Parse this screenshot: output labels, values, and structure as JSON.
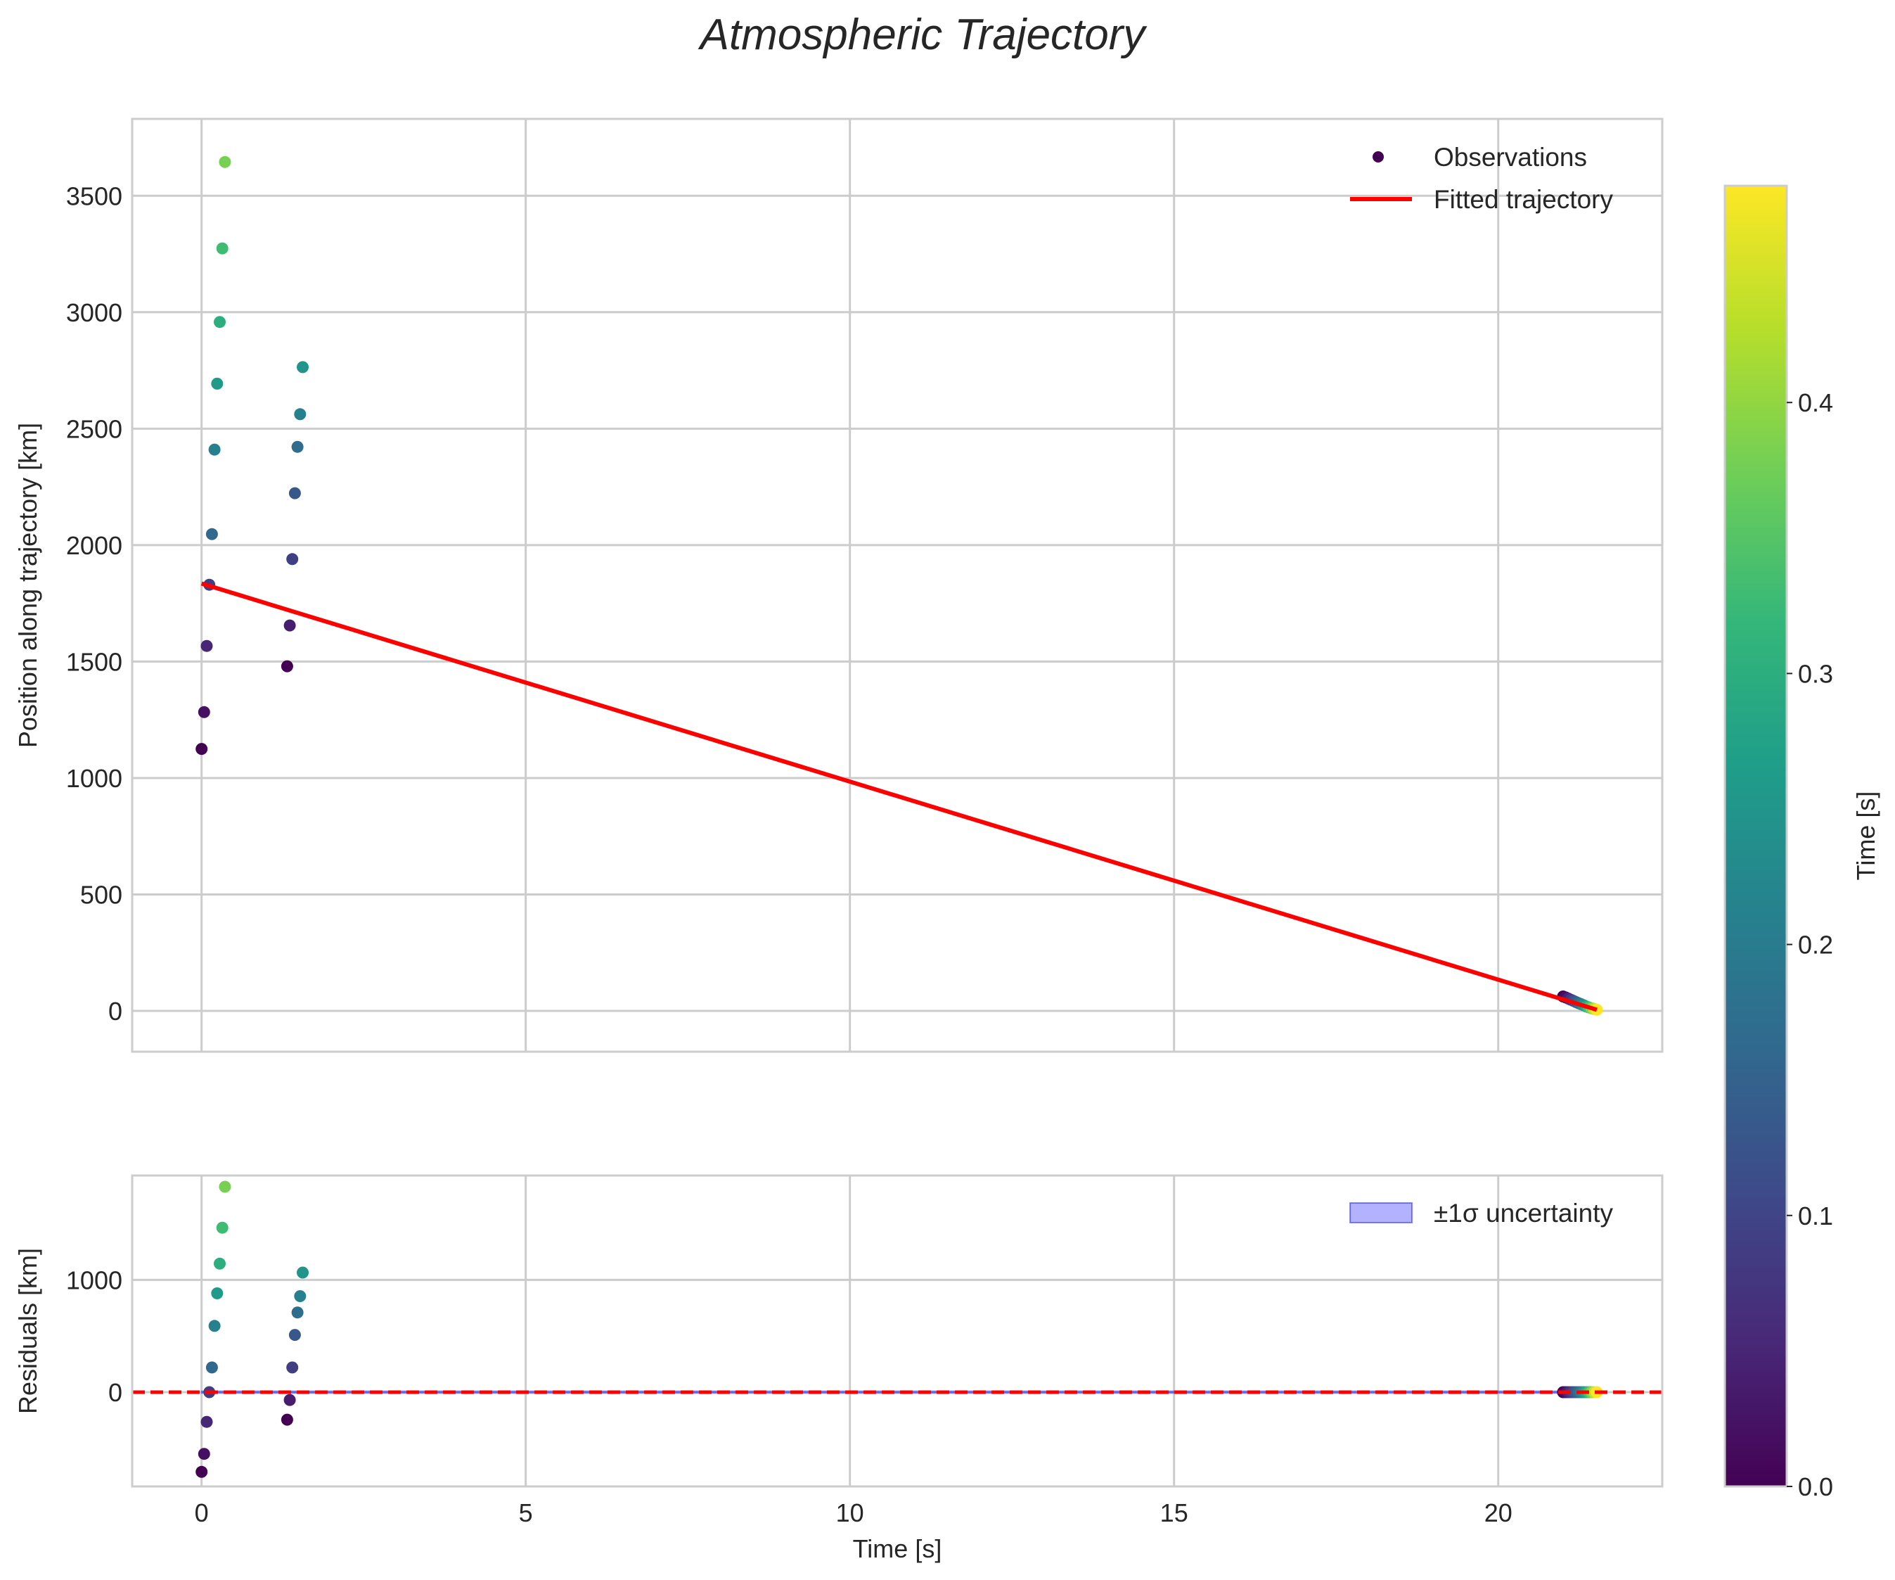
{
  "chart_data": {
    "title": "Atmospheric Trajectory",
    "colorbar": {
      "label": "Time [s]",
      "range": [
        0.0,
        0.48
      ],
      "ticks": [
        0.0,
        0.1,
        0.2,
        0.3,
        0.4
      ],
      "tick_labels": [
        "0.0",
        "0.1",
        "0.2",
        "0.3",
        "0.4"
      ],
      "colormap": [
        "#440154",
        "#482878",
        "#3e4989",
        "#31688e",
        "#26828e",
        "#1f9e89",
        "#35b779",
        "#6ece58",
        "#b5de2b",
        "#fde725"
      ]
    },
    "panels": [
      {
        "type": "scatter",
        "name": "trajectory",
        "xlabel": "",
        "ylabel": "Position along trajectory [km]",
        "xlim": [
          -1.07,
          22.53
        ],
        "ylim": [
          -175,
          3830
        ],
        "xticks": [
          0,
          5,
          10,
          15,
          20
        ],
        "yticks": [
          0,
          500,
          1000,
          1500,
          2000,
          2500,
          3000,
          3500
        ],
        "ytick_labels": [
          "0",
          "500",
          "1000",
          "1500",
          "2000",
          "2500",
          "3000",
          "3500"
        ],
        "grid": true,
        "legend": {
          "position": "top-right",
          "entries": [
            {
              "label": "Observations",
              "kind": "marker",
              "color": "#440154"
            },
            {
              "label": "Fitted trajectory",
              "kind": "line",
              "color": "#ff0000"
            }
          ]
        },
        "series": [
          {
            "name": "Observations",
            "kind": "scatter",
            "colored_by": "time",
            "points": [
              {
                "x": 0.0,
                "y": 1125,
                "c": 0.0
              },
              {
                "x": 0.04,
                "y": 1283,
                "c": 0.02
              },
              {
                "x": 0.08,
                "y": 1567,
                "c": 0.05
              },
              {
                "x": 0.12,
                "y": 1830,
                "c": 0.09
              },
              {
                "x": 0.16,
                "y": 2047,
                "c": 0.16
              },
              {
                "x": 0.2,
                "y": 2410,
                "c": 0.21
              },
              {
                "x": 0.24,
                "y": 2693,
                "c": 0.26
              },
              {
                "x": 0.28,
                "y": 2958,
                "c": 0.3
              },
              {
                "x": 0.32,
                "y": 3274,
                "c": 0.33
              },
              {
                "x": 0.36,
                "y": 3645,
                "c": 0.38
              },
              {
                "x": 1.32,
                "y": 1480,
                "c": 0.0
              },
              {
                "x": 1.36,
                "y": 1655,
                "c": 0.04
              },
              {
                "x": 1.4,
                "y": 1940,
                "c": 0.09
              },
              {
                "x": 1.44,
                "y": 2223,
                "c": 0.13
              },
              {
                "x": 1.48,
                "y": 2422,
                "c": 0.17
              },
              {
                "x": 1.52,
                "y": 2562,
                "c": 0.21
              },
              {
                "x": 1.56,
                "y": 2764,
                "c": 0.25
              },
              {
                "x": 21.0,
                "y": 62,
                "c": 0.0
              },
              {
                "x": 21.04,
                "y": 58,
                "c": 0.02
              },
              {
                "x": 21.08,
                "y": 53,
                "c": 0.05
              },
              {
                "x": 21.12,
                "y": 48,
                "c": 0.08
              },
              {
                "x": 21.16,
                "y": 43,
                "c": 0.11
              },
              {
                "x": 21.2,
                "y": 38,
                "c": 0.14
              },
              {
                "x": 21.24,
                "y": 33,
                "c": 0.17
              },
              {
                "x": 21.28,
                "y": 29,
                "c": 0.21
              },
              {
                "x": 21.32,
                "y": 24,
                "c": 0.25
              },
              {
                "x": 21.36,
                "y": 19,
                "c": 0.29
              },
              {
                "x": 21.4,
                "y": 15,
                "c": 0.34
              },
              {
                "x": 21.44,
                "y": 11,
                "c": 0.39
              },
              {
                "x": 21.48,
                "y": 8,
                "c": 0.44
              },
              {
                "x": 21.52,
                "y": 5,
                "c": 0.48
              }
            ]
          },
          {
            "name": "Fitted trajectory",
            "kind": "line",
            "color": "#ff0000",
            "x": [
              0.0,
              21.52
            ],
            "y": [
              1835,
              5
            ]
          }
        ]
      },
      {
        "type": "scatter",
        "name": "residuals",
        "xlabel": "Time [s]",
        "ylabel": "Residuals [km]",
        "xlim": [
          -1.07,
          22.53
        ],
        "ylim": [
          -840,
          1930
        ],
        "xticks": [
          0,
          5,
          10,
          15,
          20
        ],
        "xtick_labels": [
          "0",
          "5",
          "10",
          "15",
          "20"
        ],
        "yticks": [
          0,
          1000
        ],
        "ytick_labels": [
          "0",
          "1000"
        ],
        "grid": true,
        "legend": {
          "position": "top-right",
          "entries": [
            {
              "label": "±1σ uncertainty",
              "kind": "patch",
              "color": "#0000ff"
            }
          ]
        },
        "series": [
          {
            "name": "Residuals",
            "kind": "scatter",
            "colored_by": "time",
            "points": [
              {
                "x": 0.0,
                "y": -710,
                "c": 0.0
              },
              {
                "x": 0.04,
                "y": -550,
                "c": 0.02
              },
              {
                "x": 0.08,
                "y": -265,
                "c": 0.05
              },
              {
                "x": 0.12,
                "y": 0,
                "c": 0.09
              },
              {
                "x": 0.16,
                "y": 220,
                "c": 0.16
              },
              {
                "x": 0.2,
                "y": 590,
                "c": 0.21
              },
              {
                "x": 0.24,
                "y": 880,
                "c": 0.26
              },
              {
                "x": 0.28,
                "y": 1145,
                "c": 0.3
              },
              {
                "x": 0.32,
                "y": 1465,
                "c": 0.33
              },
              {
                "x": 0.36,
                "y": 1830,
                "c": 0.38
              },
              {
                "x": 1.32,
                "y": -245,
                "c": 0.0
              },
              {
                "x": 1.36,
                "y": -70,
                "c": 0.04
              },
              {
                "x": 1.4,
                "y": 220,
                "c": 0.09
              },
              {
                "x": 1.44,
                "y": 510,
                "c": 0.13
              },
              {
                "x": 1.48,
                "y": 710,
                "c": 0.17
              },
              {
                "x": 1.52,
                "y": 855,
                "c": 0.21
              },
              {
                "x": 1.56,
                "y": 1065,
                "c": 0.25
              },
              {
                "x": 21.0,
                "y": 0,
                "c": 0.0
              },
              {
                "x": 21.04,
                "y": 0,
                "c": 0.02
              },
              {
                "x": 21.08,
                "y": 0,
                "c": 0.05
              },
              {
                "x": 21.12,
                "y": 0,
                "c": 0.08
              },
              {
                "x": 21.16,
                "y": 0,
                "c": 0.11
              },
              {
                "x": 21.2,
                "y": 0,
                "c": 0.14
              },
              {
                "x": 21.24,
                "y": 0,
                "c": 0.17
              },
              {
                "x": 21.28,
                "y": 0,
                "c": 0.21
              },
              {
                "x": 21.32,
                "y": 0,
                "c": 0.25
              },
              {
                "x": 21.36,
                "y": 0,
                "c": 0.29
              },
              {
                "x": 21.4,
                "y": 0,
                "c": 0.34
              },
              {
                "x": 21.44,
                "y": 0,
                "c": 0.39
              },
              {
                "x": 21.48,
                "y": 0,
                "c": 0.44
              },
              {
                "x": 21.52,
                "y": 0,
                "c": 0.48
              }
            ]
          },
          {
            "name": "Zero line",
            "kind": "hline",
            "y": 0,
            "color": "#ff0000",
            "style": "dashed"
          },
          {
            "name": "±1σ uncertainty",
            "kind": "band",
            "color": "#0000ff",
            "x": [
              0.0,
              21.52
            ],
            "lower": [
              -8,
              -8
            ],
            "upper": [
              8,
              8
            ]
          }
        ]
      }
    ]
  }
}
